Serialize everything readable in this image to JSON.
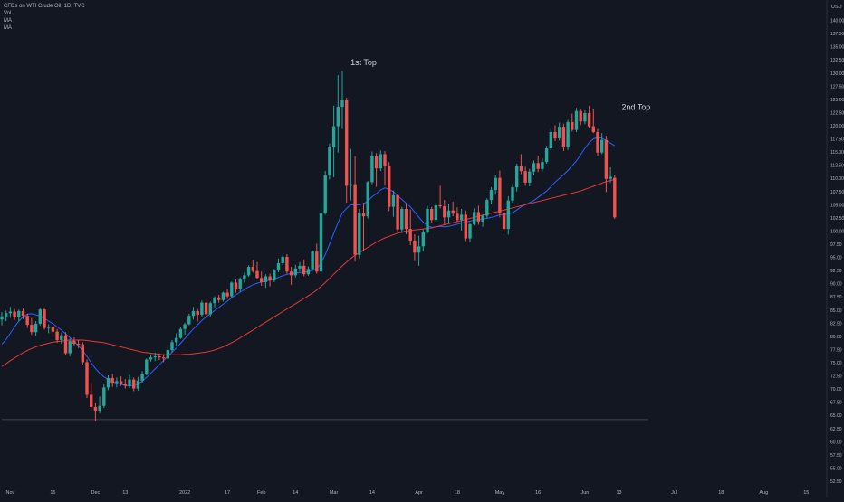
{
  "legend": {
    "title": "CFDs on WTI Crude Oil, 1D, TVC",
    "lines": [
      "Vol",
      "MA",
      "MA"
    ]
  },
  "colors": {
    "background": "#131722",
    "grid": "#1e222d",
    "up": "#26a69a",
    "down": "#ef5350",
    "ma_fast": "#2962ff",
    "ma_slow": "#e53935",
    "text": "#b2b5be",
    "support": "#434651"
  },
  "chart_data": {
    "type": "candlestick",
    "title": "CFDs on WTI Crude Oil, 1D, TVC",
    "currency": "USD",
    "ylim": [
      52.5,
      142.5
    ],
    "y_ticks": [
      "142.50",
      "140.00",
      "137.50",
      "135.00",
      "132.50",
      "130.00",
      "127.50",
      "125.00",
      "122.50",
      "120.00",
      "117.50",
      "115.00",
      "112.50",
      "110.00",
      "107.50",
      "105.00",
      "102.50",
      "100.00",
      "97.50",
      "95.00",
      "92.50",
      "90.00",
      "87.50",
      "85.00",
      "82.50",
      "80.00",
      "77.50",
      "75.00",
      "72.50",
      "70.00",
      "67.50",
      "65.00",
      "62.50",
      "60.00",
      "57.50",
      "55.00",
      "52.50"
    ],
    "x_ticks": [
      {
        "label": "Nov",
        "i": 2
      },
      {
        "label": "15",
        "i": 12
      },
      {
        "label": "Dec",
        "i": 22
      },
      {
        "label": "13",
        "i": 29
      },
      {
        "label": "2022",
        "i": 43
      },
      {
        "label": "17",
        "i": 53
      },
      {
        "label": "Feb",
        "i": 61
      },
      {
        "label": "14",
        "i": 69
      },
      {
        "label": "Mar",
        "i": 78
      },
      {
        "label": "14",
        "i": 87
      },
      {
        "label": "Apr",
        "i": 98
      },
      {
        "label": "18",
        "i": 107
      },
      {
        "label": "May",
        "i": 117
      },
      {
        "label": "16",
        "i": 126
      },
      {
        "label": "Jun",
        "i": 137
      },
      {
        "label": "13",
        "i": 145
      },
      {
        "label": "Jul",
        "i": 158
      },
      {
        "label": "18",
        "i": 169
      },
      {
        "label": "Aug",
        "i": 179
      },
      {
        "label": "15",
        "i": 189
      }
    ],
    "annotations": [
      {
        "text": "1st Top",
        "i": 85,
        "y": 131.5
      },
      {
        "text": "2nd Top",
        "i": 149,
        "y": 123.0
      }
    ],
    "support_level": 64.2,
    "last_price_marker": "USD",
    "candles": [
      [
        83.2,
        84.6,
        82.1,
        83.8
      ],
      [
        83.8,
        84.9,
        82.9,
        84.4
      ],
      [
        84.4,
        85.6,
        83.5,
        84.7
      ],
      [
        84.7,
        85.2,
        83.1,
        83.6
      ],
      [
        83.6,
        85.1,
        82.8,
        84.8
      ],
      [
        84.8,
        85.3,
        83.3,
        83.9
      ],
      [
        83.9,
        84.3,
        81.6,
        82.2
      ],
      [
        82.2,
        83.5,
        80.3,
        80.8
      ],
      [
        80.8,
        82.9,
        80.1,
        82.4
      ],
      [
        82.4,
        85.4,
        82.1,
        85.1
      ],
      [
        85.1,
        85.5,
        81.3,
        81.6
      ],
      [
        81.6,
        82.3,
        80.6,
        81.8
      ],
      [
        81.8,
        82.2,
        80.4,
        80.9
      ],
      [
        80.9,
        81.4,
        78.8,
        79.3
      ],
      [
        79.3,
        80.6,
        78.6,
        80.2
      ],
      [
        80.2,
        80.8,
        76.5,
        76.8
      ],
      [
        76.8,
        79.6,
        76.2,
        79.1
      ],
      [
        79.1,
        79.8,
        78.3,
        78.6
      ],
      [
        78.6,
        79.3,
        77.8,
        78.5
      ],
      [
        78.5,
        78.9,
        74.6,
        75.1
      ],
      [
        75.1,
        75.6,
        68.3,
        68.9
      ],
      [
        68.9,
        71.1,
        66.2,
        66.6
      ],
      [
        66.6,
        67.4,
        63.9,
        65.9
      ],
      [
        65.9,
        68.6,
        65.4,
        66.8
      ],
      [
        66.8,
        70.9,
        66.4,
        70.3
      ],
      [
        70.3,
        72.6,
        69.8,
        72.1
      ],
      [
        72.1,
        72.9,
        70.4,
        71.2
      ],
      [
        71.2,
        72.2,
        70.3,
        71.5
      ],
      [
        71.5,
        72.4,
        70.6,
        71.0
      ],
      [
        71.0,
        71.9,
        70.1,
        70.6
      ],
      [
        70.6,
        72.7,
        70.2,
        71.8
      ],
      [
        71.8,
        72.2,
        69.6,
        70.1
      ],
      [
        70.1,
        72.3,
        69.7,
        71.6
      ],
      [
        71.6,
        73.4,
        71.2,
        72.9
      ],
      [
        72.9,
        75.8,
        72.6,
        75.6
      ],
      [
        75.6,
        76.6,
        75.2,
        76.0
      ],
      [
        76.0,
        76.9,
        75.3,
        76.2
      ],
      [
        76.2,
        76.8,
        75.5,
        76.0
      ],
      [
        76.0,
        76.6,
        75.1,
        75.8
      ],
      [
        75.8,
        77.8,
        75.6,
        77.4
      ],
      [
        77.4,
        79.3,
        76.9,
        78.9
      ],
      [
        78.9,
        80.6,
        78.1,
        79.7
      ],
      [
        79.7,
        81.8,
        79.5,
        81.4
      ],
      [
        81.4,
        82.6,
        80.3,
        82.3
      ],
      [
        82.3,
        84.3,
        82.1,
        83.9
      ],
      [
        83.9,
        85.6,
        83.2,
        84.8
      ],
      [
        84.8,
        85.2,
        82.8,
        84.1
      ],
      [
        84.1,
        86.8,
        83.7,
        86.4
      ],
      [
        86.4,
        86.9,
        83.6,
        84.2
      ],
      [
        84.2,
        86.6,
        83.8,
        86.3
      ],
      [
        86.3,
        87.6,
        85.3,
        87.4
      ],
      [
        87.4,
        87.9,
        86.4,
        86.9
      ],
      [
        86.9,
        88.5,
        86.6,
        88.3
      ],
      [
        88.3,
        88.9,
        87.1,
        87.6
      ],
      [
        87.6,
        90.4,
        87.3,
        90.2
      ],
      [
        90.2,
        90.8,
        88.3,
        88.9
      ],
      [
        88.9,
        91.2,
        88.4,
        90.8
      ],
      [
        90.8,
        92.1,
        90.2,
        91.6
      ],
      [
        91.6,
        93.5,
        91.3,
        93.2
      ],
      [
        93.2,
        94.5,
        92.1,
        92.4
      ],
      [
        92.4,
        94.1,
        90.8,
        91.1
      ],
      [
        91.1,
        92.3,
        89.6,
        90.3
      ],
      [
        90.3,
        91.8,
        89.2,
        91.4
      ],
      [
        91.4,
        91.9,
        89.5,
        90.6
      ],
      [
        90.6,
        92.8,
        90.3,
        92.5
      ],
      [
        92.5,
        94.8,
        92.2,
        93.9
      ],
      [
        93.9,
        95.4,
        93.5,
        95.1
      ],
      [
        95.1,
        95.6,
        91.9,
        92.3
      ],
      [
        92.3,
        93.2,
        89.8,
        91.6
      ],
      [
        91.6,
        93.6,
        91.2,
        92.9
      ],
      [
        92.9,
        94.1,
        92.3,
        93.4
      ],
      [
        93.4,
        94.6,
        91.4,
        91.8
      ],
      [
        91.8,
        93.3,
        91.5,
        92.8
      ],
      [
        92.8,
        96.3,
        92.4,
        96.1
      ],
      [
        96.1,
        97.6,
        91.9,
        92.3
      ],
      [
        92.3,
        105.4,
        92.1,
        103.4
      ],
      [
        103.4,
        111.4,
        103.1,
        110.6
      ],
      [
        110.6,
        116.6,
        109.8,
        115.9
      ],
      [
        115.9,
        123.8,
        110.2,
        119.9
      ],
      [
        119.9,
        129.6,
        114.9,
        123.6
      ],
      [
        123.6,
        130.4,
        119.4,
        124.8
      ],
      [
        124.8,
        125.3,
        105.4,
        108.6
      ],
      [
        108.6,
        115.6,
        105.8,
        108.9
      ],
      [
        108.9,
        114.2,
        94.2,
        95.5
      ],
      [
        95.5,
        104.2,
        94.8,
        103.5
      ],
      [
        103.5,
        105.4,
        96.1,
        102.8
      ],
      [
        102.8,
        109.5,
        102.4,
        109.3
      ],
      [
        109.3,
        115.1,
        108.9,
        114.2
      ],
      [
        114.2,
        114.8,
        108.4,
        111.9
      ],
      [
        111.9,
        115.3,
        111.4,
        114.6
      ],
      [
        114.6,
        115.2,
        108.6,
        112.3
      ],
      [
        112.3,
        113.1,
        103.8,
        104.6
      ],
      [
        104.6,
        107.7,
        102.7,
        106.8
      ],
      [
        106.8,
        107.1,
        99.8,
        100.3
      ],
      [
        100.3,
        104.6,
        99.6,
        104.2
      ],
      [
        104.2,
        105.1,
        99.4,
        100.4
      ],
      [
        100.4,
        104.1,
        97.3,
        98.2
      ],
      [
        98.2,
        99.4,
        94.3,
        95.9
      ],
      [
        95.9,
        99.1,
        93.4,
        97.1
      ],
      [
        97.1,
        100.3,
        96.2,
        99.8
      ],
      [
        99.8,
        104.8,
        99.5,
        104.2
      ],
      [
        104.2,
        104.6,
        101.6,
        102.1
      ],
      [
        102.1,
        105.4,
        101.8,
        104.9
      ],
      [
        104.9,
        108.6,
        104.3,
        104.7
      ],
      [
        104.7,
        105.9,
        101.2,
        102.6
      ],
      [
        102.6,
        105.2,
        101.4,
        103.9
      ],
      [
        103.9,
        105.6,
        102.8,
        103.3
      ],
      [
        103.3,
        104.5,
        101.8,
        102.1
      ],
      [
        102.1,
        104.2,
        100.1,
        103.1
      ],
      [
        103.1,
        103.9,
        98.1,
        98.6
      ],
      [
        98.6,
        101.7,
        97.9,
        101.3
      ],
      [
        101.3,
        104.3,
        101.1,
        103.6
      ],
      [
        103.6,
        104.8,
        101.2,
        101.8
      ],
      [
        101.8,
        103.2,
        100.8,
        102.9
      ],
      [
        102.9,
        106.2,
        102.5,
        105.9
      ],
      [
        105.9,
        108.3,
        105.1,
        107.8
      ],
      [
        107.8,
        110.6,
        106.9,
        110.1
      ],
      [
        110.1,
        111.5,
        102.6,
        103.4
      ],
      [
        103.4,
        104.2,
        99.8,
        100.4
      ],
      [
        100.4,
        106.6,
        99.3,
        105.8
      ],
      [
        105.8,
        108.9,
        105.4,
        108.3
      ],
      [
        108.3,
        112.8,
        107.5,
        112.3
      ],
      [
        112.3,
        114.6,
        110.8,
        111.4
      ],
      [
        111.4,
        112.2,
        108.6,
        109.2
      ],
      [
        109.2,
        111.8,
        108.5,
        111.3
      ],
      [
        111.3,
        113.4,
        110.6,
        112.9
      ],
      [
        112.9,
        114.3,
        111.2,
        111.8
      ],
      [
        111.8,
        113.8,
        111.3,
        113.1
      ],
      [
        113.1,
        116.2,
        112.8,
        115.7
      ],
      [
        115.7,
        119.4,
        115.3,
        118.8
      ],
      [
        118.8,
        120.1,
        117.1,
        117.6
      ],
      [
        117.6,
        120.6,
        117.2,
        119.8
      ],
      [
        119.8,
        120.4,
        115.2,
        115.9
      ],
      [
        115.9,
        121.1,
        115.4,
        120.7
      ],
      [
        120.7,
        122.3,
        118.9,
        119.2
      ],
      [
        119.2,
        123.4,
        118.8,
        122.8
      ],
      [
        122.8,
        123.1,
        120.1,
        120.8
      ],
      [
        120.8,
        122.9,
        120.3,
        122.4
      ],
      [
        122.4,
        123.8,
        119.6,
        119.9
      ],
      [
        119.9,
        123.1,
        118.6,
        118.8
      ],
      [
        118.8,
        119.4,
        114.3,
        114.9
      ],
      [
        114.9,
        118.6,
        114.6,
        117.3
      ],
      [
        117.3,
        118.1,
        107.4,
        109.9
      ],
      [
        109.9,
        112.1,
        109.2,
        110.3
      ],
      [
        110.1,
        110.6,
        102.3,
        102.6
      ]
    ],
    "moving_averages": [
      {
        "name": "MA",
        "color": "#2962ff",
        "values": [
          78.5,
          79.4,
          80.6,
          81.8,
          82.9,
          83.7,
          84.2,
          84.3,
          84.1,
          83.8,
          83.4,
          82.9,
          82.4,
          81.8,
          81.2,
          80.5,
          79.8,
          79.0,
          78.2,
          77.3,
          76.2,
          75.0,
          73.9,
          73.0,
          72.3,
          71.8,
          71.4,
          71.1,
          70.9,
          70.7,
          70.6,
          70.7,
          71.0,
          71.5,
          72.2,
          73.0,
          73.8,
          74.6,
          75.4,
          76.2,
          77.0,
          77.8,
          78.7,
          79.6,
          80.5,
          81.4,
          82.2,
          83.0,
          83.7,
          84.3,
          84.9,
          85.5,
          86.1,
          86.7,
          87.3,
          87.9,
          88.4,
          88.9,
          89.4,
          89.8,
          90.1,
          90.3,
          90.5,
          90.7,
          90.9,
          91.2,
          91.5,
          91.8,
          91.9,
          92.0,
          92.1,
          92.2,
          92.3,
          92.6,
          92.8,
          93.9,
          95.5,
          97.5,
          99.6,
          101.6,
          103.4,
          104.3,
          105.0,
          104.9,
          105.0,
          105.2,
          105.7,
          106.5,
          107.1,
          107.8,
          108.2,
          107.9,
          107.5,
          106.7,
          106.0,
          105.3,
          104.6,
          103.6,
          102.6,
          101.7,
          101.0,
          100.7,
          100.8,
          100.9,
          100.8,
          100.9,
          101.1,
          101.3,
          101.5,
          101.7,
          101.9,
          102.1,
          102.2,
          102.3,
          102.4,
          102.6,
          102.8,
          103.1,
          103.1,
          103.2,
          103.5,
          104.0,
          104.6,
          105.0,
          105.4,
          105.8,
          106.4,
          107.0,
          107.6,
          108.4,
          109.3,
          110.0,
          110.7,
          111.5,
          112.4,
          113.3,
          114.5,
          115.7,
          116.8,
          117.5,
          117.8,
          117.6,
          117.2,
          116.7,
          116.2
        ]
      },
      {
        "name": "MA",
        "color": "#e53935",
        "values": [
          74.3,
          74.8,
          75.4,
          75.9,
          76.4,
          76.9,
          77.3,
          77.7,
          78.0,
          78.3,
          78.5,
          78.7,
          78.9,
          79.0,
          79.1,
          79.2,
          79.3,
          79.3,
          79.3,
          79.3,
          79.2,
          79.1,
          79.0,
          78.9,
          78.8,
          78.6,
          78.4,
          78.2,
          78.0,
          77.8,
          77.6,
          77.4,
          77.2,
          77.0,
          76.9,
          76.8,
          76.7,
          76.6,
          76.5,
          76.5,
          76.5,
          76.5,
          76.5,
          76.6,
          76.6,
          76.7,
          76.8,
          76.9,
          77.0,
          77.2,
          77.4,
          77.7,
          78.0,
          78.4,
          78.8,
          79.2,
          79.7,
          80.2,
          80.7,
          81.2,
          81.7,
          82.2,
          82.7,
          83.2,
          83.7,
          84.2,
          84.7,
          85.2,
          85.7,
          86.2,
          86.7,
          87.2,
          87.7,
          88.2,
          88.8,
          89.5,
          90.2,
          91.0,
          91.8,
          92.6,
          93.4,
          94.1,
          94.8,
          95.4,
          95.9,
          96.4,
          96.9,
          97.4,
          97.9,
          98.3,
          98.7,
          99.0,
          99.3,
          99.6,
          99.8,
          100.0,
          100.1,
          100.2,
          100.3,
          100.4,
          100.5,
          100.6,
          100.8,
          101.0,
          101.2,
          101.4,
          101.6,
          101.8,
          102.0,
          102.2,
          102.4,
          102.6,
          102.8,
          103.0,
          103.2,
          103.4,
          103.6,
          103.8,
          104.0,
          104.2,
          104.4,
          104.6,
          104.8,
          105.0,
          105.2,
          105.4,
          105.6,
          105.8,
          106.0,
          106.2,
          106.4,
          106.6,
          106.8,
          107.0,
          107.2,
          107.4,
          107.6,
          107.9,
          108.2,
          108.5,
          108.8,
          109.1,
          109.4,
          109.6,
          109.8
        ]
      }
    ]
  }
}
